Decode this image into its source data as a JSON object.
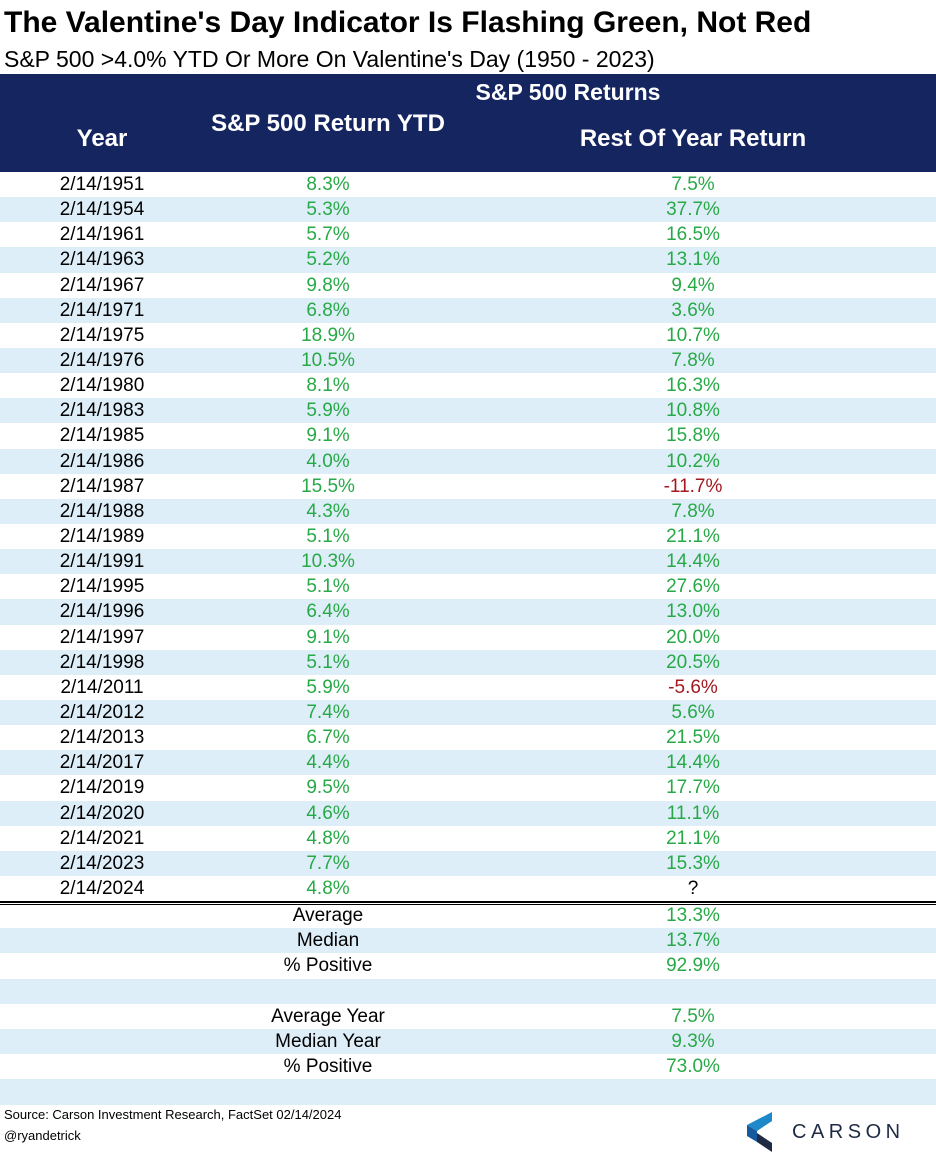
{
  "chart_data": {
    "type": "table",
    "title": "The Valentine's Day Indicator Is Flashing Green, Not Red",
    "subtitle": "S&P 500 >4.0% YTD Or More On Valentine's Day (1950 - 2023)",
    "header_group": "S&P 500 Returns",
    "columns": [
      "Year",
      "S&P 500 Return YTD",
      "Rest Of Year Return"
    ],
    "rows": [
      {
        "date": "2/14/1951",
        "ytd": "8.3%",
        "rest": "7.5%"
      },
      {
        "date": "2/14/1954",
        "ytd": "5.3%",
        "rest": "37.7%"
      },
      {
        "date": "2/14/1961",
        "ytd": "5.7%",
        "rest": "16.5%"
      },
      {
        "date": "2/14/1963",
        "ytd": "5.2%",
        "rest": "13.1%"
      },
      {
        "date": "2/14/1967",
        "ytd": "9.8%",
        "rest": "9.4%"
      },
      {
        "date": "2/14/1971",
        "ytd": "6.8%",
        "rest": "3.6%"
      },
      {
        "date": "2/14/1975",
        "ytd": "18.9%",
        "rest": "10.7%"
      },
      {
        "date": "2/14/1976",
        "ytd": "10.5%",
        "rest": "7.8%"
      },
      {
        "date": "2/14/1980",
        "ytd": "8.1%",
        "rest": "16.3%"
      },
      {
        "date": "2/14/1983",
        "ytd": "5.9%",
        "rest": "10.8%"
      },
      {
        "date": "2/14/1985",
        "ytd": "9.1%",
        "rest": "15.8%"
      },
      {
        "date": "2/14/1986",
        "ytd": "4.0%",
        "rest": "10.2%"
      },
      {
        "date": "2/14/1987",
        "ytd": "15.5%",
        "rest": "-11.7%"
      },
      {
        "date": "2/14/1988",
        "ytd": "4.3%",
        "rest": "7.8%"
      },
      {
        "date": "2/14/1989",
        "ytd": "5.1%",
        "rest": "21.1%"
      },
      {
        "date": "2/14/1991",
        "ytd": "10.3%",
        "rest": "14.4%"
      },
      {
        "date": "2/14/1995",
        "ytd": "5.1%",
        "rest": "27.6%"
      },
      {
        "date": "2/14/1996",
        "ytd": "6.4%",
        "rest": "13.0%"
      },
      {
        "date": "2/14/1997",
        "ytd": "9.1%",
        "rest": "20.0%"
      },
      {
        "date": "2/14/1998",
        "ytd": "5.1%",
        "rest": "20.5%"
      },
      {
        "date": "2/14/2011",
        "ytd": "5.9%",
        "rest": "-5.6%"
      },
      {
        "date": "2/14/2012",
        "ytd": "7.4%",
        "rest": "5.6%"
      },
      {
        "date": "2/14/2013",
        "ytd": "6.7%",
        "rest": "21.5%"
      },
      {
        "date": "2/14/2017",
        "ytd": "4.4%",
        "rest": "14.4%"
      },
      {
        "date": "2/14/2019",
        "ytd": "9.5%",
        "rest": "17.7%"
      },
      {
        "date": "2/14/2020",
        "ytd": "4.6%",
        "rest": "11.1%"
      },
      {
        "date": "2/14/2021",
        "ytd": "4.8%",
        "rest": "21.1%"
      },
      {
        "date": "2/14/2023",
        "ytd": "7.7%",
        "rest": "15.3%"
      },
      {
        "date": "2/14/2024",
        "ytd": "4.8%",
        "rest": "?"
      }
    ],
    "summary": [
      {
        "label": "Average",
        "value": "13.3%"
      },
      {
        "label": "Median",
        "value": "13.7%"
      },
      {
        "label": "% Positive",
        "value": "92.9%"
      },
      {
        "label": "",
        "value": ""
      },
      {
        "label": "Average Year",
        "value": "7.5%"
      },
      {
        "label": "Median Year",
        "value": "9.3%"
      },
      {
        "label": "% Positive",
        "value": "73.0%"
      },
      {
        "label": "",
        "value": ""
      }
    ]
  },
  "colors": {
    "header_bg": "#142560",
    "positive": "#27a947",
    "negative": "#a2191f",
    "alt_row": "#deeef8"
  },
  "footer": {
    "source": "Source: Carson Investment Research, FactSet 02/14/2024",
    "handle": "@ryandetrick",
    "logo_text": "CARSON",
    "logo_icon": "carson-chevron-logo-icon"
  }
}
